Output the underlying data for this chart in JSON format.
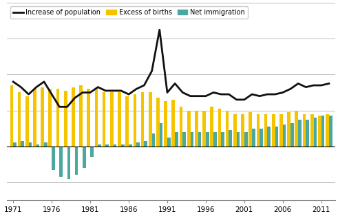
{
  "years": [
    1971,
    1972,
    1973,
    1974,
    1975,
    1976,
    1977,
    1978,
    1979,
    1980,
    1981,
    1982,
    1983,
    1984,
    1985,
    1986,
    1987,
    1988,
    1989,
    1990,
    1991,
    1992,
    1993,
    1994,
    1995,
    1996,
    1997,
    1998,
    1999,
    2000,
    2001,
    2002,
    2003,
    2004,
    2005,
    2006,
    2007,
    2008,
    2009,
    2010,
    2011,
    2012
  ],
  "excess_births": [
    34000,
    30000,
    28000,
    32000,
    33000,
    32000,
    32000,
    31000,
    33000,
    34000,
    32000,
    32000,
    30000,
    30000,
    30000,
    28000,
    29000,
    30000,
    30000,
    27000,
    25000,
    26000,
    22000,
    20000,
    20000,
    20000,
    22000,
    21000,
    20000,
    18000,
    18000,
    19000,
    18000,
    18000,
    18000,
    18000,
    19000,
    20000,
    18000,
    18000,
    17000,
    18000
  ],
  "net_immigration": [
    2000,
    3000,
    2000,
    1000,
    2000,
    -13000,
    -17000,
    -18000,
    -16000,
    -12000,
    -6000,
    1000,
    1000,
    1000,
    1000,
    1000,
    2000,
    3000,
    7000,
    13000,
    5000,
    8000,
    8000,
    8000,
    8000,
    8000,
    8000,
    8000,
    9000,
    8000,
    8000,
    10000,
    10000,
    11000,
    11000,
    12000,
    13000,
    15000,
    15000,
    16000,
    17000,
    17000
  ],
  "increase_pop": [
    36000,
    33000,
    29000,
    33000,
    36000,
    29000,
    22000,
    22000,
    27000,
    30000,
    30000,
    33000,
    31000,
    31000,
    31000,
    29000,
    32000,
    34000,
    42000,
    65000,
    30000,
    35000,
    30000,
    28000,
    28000,
    28000,
    30000,
    29000,
    29000,
    26000,
    26000,
    29000,
    28000,
    29000,
    29000,
    30000,
    32000,
    35000,
    33000,
    34000,
    34000,
    35000
  ],
  "bar_color_births": "#F5C400",
  "bar_color_immigration": "#4BA8A0",
  "line_color": "#111111",
  "ylim": [
    -30000,
    80000
  ],
  "yticks": [
    -20000,
    0,
    20000,
    40000,
    60000,
    80000
  ],
  "legend_pop": "Increase of population",
  "legend_births": "Excess of births",
  "legend_immigration": "Net immigration",
  "bg_color": "#ffffff",
  "grid_color": "#bbbbbb",
  "xtick_years": [
    1971,
    1976,
    1981,
    1986,
    1991,
    1996,
    2001,
    2006,
    2011
  ]
}
